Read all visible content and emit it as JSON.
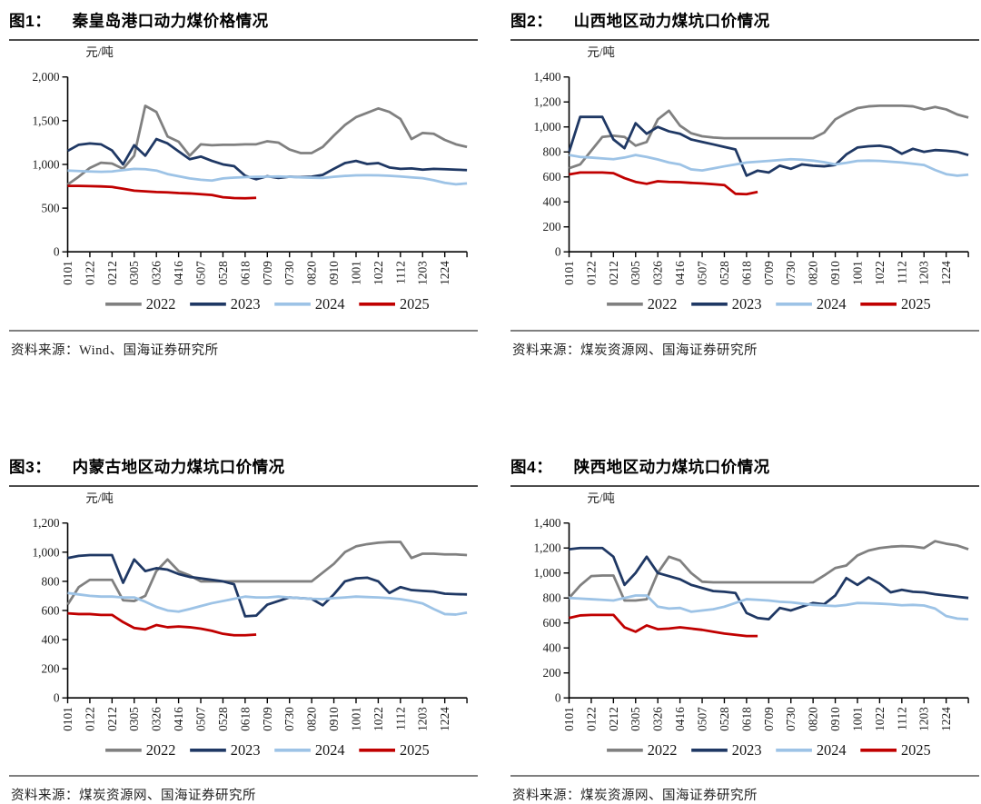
{
  "page": {
    "background": "#ffffff"
  },
  "figures": [
    {
      "number": "图1：",
      "title": "秦皇岛港口动力煤价格情况",
      "source": "资料来源：Wind、国海证券研究所"
    },
    {
      "number": "图2：",
      "title": "山西地区动力煤坑口价情况",
      "source": "资料来源：煤炭资源网、国海证券研究所"
    },
    {
      "number": "图3：",
      "title": "内蒙古地区动力煤坑口价情况",
      "source": "资料来源：煤炭资源网、国海证券研究所"
    },
    {
      "number": "图4：",
      "title": "陕西地区动力煤坑口价情况",
      "source": "资料来源：煤炭资源网、国海证券研究所"
    }
  ],
  "colors": {
    "y2022": "#808080",
    "y2023": "#1F3864",
    "y2024": "#9DC3E6",
    "y2025": "#C00000",
    "axis": "#000000",
    "title_rule": "#4d4d4d",
    "source_rule": "#7f7f7f"
  },
  "chart_data": [
    {
      "type": "line",
      "title": "秦皇岛港口动力煤价格情况",
      "unit_label": "元/吨",
      "ylim": [
        0,
        2000
      ],
      "ytick_step": 500,
      "grid": false,
      "legend_position": "bottom",
      "x_ticklabels": [
        "0101",
        "0122",
        "0212",
        "0305",
        "0326",
        "0416",
        "0507",
        "0528",
        "0618",
        "0709",
        "0730",
        "0820",
        "0910",
        "1001",
        "1022",
        "1112",
        "1203",
        "1224"
      ],
      "points_per_year": 37,
      "series": [
        {
          "name": "2022",
          "color": "#808080",
          "values": [
            770,
            860,
            960,
            1020,
            1010,
            950,
            1100,
            1670,
            1600,
            1320,
            1260,
            1100,
            1230,
            1220,
            1225,
            1225,
            1230,
            1230,
            1265,
            1250,
            1170,
            1130,
            1130,
            1200,
            1330,
            1450,
            1540,
            1590,
            1640,
            1600,
            1520,
            1290,
            1360,
            1350,
            1280,
            1230,
            1200
          ]
        },
        {
          "name": "2023",
          "color": "#1F3864",
          "values": [
            1155,
            1225,
            1240,
            1230,
            1160,
            1000,
            1220,
            1100,
            1290,
            1240,
            1150,
            1060,
            1090,
            1040,
            1000,
            980,
            870,
            830,
            865,
            845,
            860,
            855,
            860,
            880,
            950,
            1015,
            1040,
            1005,
            1015,
            965,
            950,
            955,
            940,
            950,
            945,
            940,
            935
          ]
        },
        {
          "name": "2024",
          "color": "#9DC3E6",
          "values": [
            930,
            925,
            920,
            915,
            920,
            935,
            950,
            945,
            930,
            890,
            865,
            840,
            825,
            815,
            840,
            850,
            855,
            858,
            860,
            862,
            858,
            852,
            848,
            845,
            858,
            868,
            875,
            876,
            875,
            870,
            862,
            852,
            842,
            820,
            790,
            772,
            782
          ]
        },
        {
          "name": "2025",
          "color": "#C00000",
          "values": [
            755,
            755,
            752,
            748,
            742,
            722,
            700,
            692,
            685,
            680,
            672,
            668,
            660,
            650,
            625,
            615,
            612,
            618
          ]
        }
      ]
    },
    {
      "type": "line",
      "title": "山西地区动力煤坑口价情况",
      "unit_label": "元/吨",
      "ylim": [
        0,
        1400
      ],
      "ytick_step": 200,
      "grid": false,
      "legend_position": "bottom",
      "x_ticklabels": [
        "0101",
        "0122",
        "0212",
        "0305",
        "0326",
        "0416",
        "0507",
        "0528",
        "0618",
        "0709",
        "0730",
        "0820",
        "0910",
        "1001",
        "1022",
        "1112",
        "1203",
        "1224"
      ],
      "points_per_year": 37,
      "series": [
        {
          "name": "2022",
          "color": "#808080",
          "values": [
            670,
            700,
            810,
            920,
            930,
            920,
            850,
            880,
            1060,
            1130,
            1010,
            950,
            925,
            915,
            910,
            910,
            910,
            910,
            910,
            910,
            910,
            910,
            910,
            955,
            1060,
            1110,
            1150,
            1165,
            1170,
            1170,
            1170,
            1165,
            1140,
            1160,
            1140,
            1100,
            1075
          ]
        },
        {
          "name": "2023",
          "color": "#1F3864",
          "values": [
            800,
            1080,
            1080,
            1080,
            900,
            830,
            1030,
            945,
            1000,
            965,
            945,
            900,
            880,
            860,
            840,
            820,
            610,
            650,
            635,
            690,
            665,
            700,
            690,
            685,
            695,
            780,
            835,
            845,
            850,
            835,
            785,
            825,
            800,
            815,
            810,
            800,
            775
          ]
        },
        {
          "name": "2024",
          "color": "#9DC3E6",
          "values": [
            775,
            760,
            755,
            748,
            742,
            755,
            775,
            760,
            740,
            715,
            700,
            660,
            652,
            668,
            685,
            700,
            715,
            722,
            728,
            735,
            742,
            738,
            730,
            718,
            700,
            712,
            728,
            730,
            728,
            722,
            715,
            705,
            695,
            655,
            622,
            610,
            618
          ]
        },
        {
          "name": "2025",
          "color": "#C00000",
          "values": [
            620,
            635,
            635,
            635,
            630,
            590,
            560,
            545,
            565,
            560,
            558,
            552,
            548,
            542,
            535,
            465,
            462,
            480
          ]
        }
      ]
    },
    {
      "type": "line",
      "title": "内蒙古地区动力煤坑口价情况",
      "unit_label": "元/吨",
      "ylim": [
        0,
        1200
      ],
      "ytick_step": 200,
      "grid": false,
      "legend_position": "bottom",
      "x_ticklabels": [
        "0101",
        "0122",
        "0212",
        "0305",
        "0326",
        "0416",
        "0507",
        "0528",
        "0618",
        "0709",
        "0730",
        "0820",
        "0910",
        "1001",
        "1022",
        "1112",
        "1203",
        "1224"
      ],
      "points_per_year": 37,
      "series": [
        {
          "name": "2022",
          "color": "#808080",
          "values": [
            640,
            760,
            810,
            810,
            810,
            670,
            665,
            700,
            870,
            950,
            870,
            840,
            800,
            800,
            800,
            800,
            800,
            800,
            800,
            800,
            800,
            800,
            800,
            860,
            920,
            1000,
            1040,
            1055,
            1065,
            1070,
            1070,
            960,
            990,
            990,
            985,
            985,
            980
          ]
        },
        {
          "name": "2023",
          "color": "#1F3864",
          "values": [
            960,
            975,
            980,
            980,
            980,
            790,
            950,
            870,
            890,
            880,
            850,
            830,
            820,
            810,
            800,
            780,
            560,
            565,
            640,
            665,
            690,
            685,
            680,
            635,
            710,
            800,
            820,
            825,
            800,
            720,
            760,
            740,
            735,
            730,
            715,
            712,
            710
          ]
        },
        {
          "name": "2024",
          "color": "#9DC3E6",
          "values": [
            720,
            710,
            700,
            695,
            695,
            690,
            690,
            660,
            625,
            600,
            592,
            610,
            630,
            650,
            665,
            680,
            695,
            690,
            690,
            695,
            690,
            685,
            680,
            678,
            685,
            690,
            695,
            692,
            690,
            685,
            678,
            665,
            648,
            610,
            575,
            572,
            585
          ]
        },
        {
          "name": "2025",
          "color": "#C00000",
          "values": [
            580,
            575,
            575,
            570,
            570,
            520,
            480,
            470,
            500,
            485,
            490,
            485,
            475,
            460,
            440,
            430,
            430,
            435
          ]
        }
      ]
    },
    {
      "type": "line",
      "title": "陕西地区动力煤坑口价情况",
      "unit_label": "元/吨",
      "ylim": [
        0,
        1400
      ],
      "ytick_step": 200,
      "grid": false,
      "legend_position": "bottom",
      "x_ticklabels": [
        "0101",
        "0122",
        "0212",
        "0305",
        "0326",
        "0416",
        "0507",
        "0528",
        "0618",
        "0709",
        "0730",
        "0820",
        "0910",
        "1001",
        "1022",
        "1112",
        "1203",
        "1224"
      ],
      "points_per_year": 37,
      "series": [
        {
          "name": "2022",
          "color": "#808080",
          "values": [
            800,
            900,
            975,
            980,
            980,
            780,
            780,
            790,
            1000,
            1130,
            1100,
            1000,
            930,
            925,
            925,
            925,
            925,
            925,
            925,
            925,
            925,
            925,
            925,
            980,
            1040,
            1060,
            1140,
            1180,
            1200,
            1210,
            1215,
            1212,
            1200,
            1255,
            1235,
            1220,
            1190
          ]
        },
        {
          "name": "2023",
          "color": "#1F3864",
          "values": [
            1190,
            1200,
            1200,
            1200,
            1130,
            905,
            1000,
            1130,
            1000,
            975,
            950,
            905,
            880,
            855,
            850,
            840,
            680,
            640,
            630,
            720,
            700,
            730,
            760,
            750,
            820,
            960,
            905,
            965,
            915,
            845,
            865,
            850,
            845,
            830,
            820,
            810,
            800
          ]
        },
        {
          "name": "2024",
          "color": "#9DC3E6",
          "values": [
            800,
            795,
            790,
            785,
            780,
            800,
            820,
            820,
            730,
            715,
            720,
            690,
            700,
            710,
            730,
            760,
            790,
            785,
            780,
            770,
            765,
            755,
            745,
            740,
            735,
            745,
            760,
            758,
            755,
            750,
            742,
            745,
            740,
            715,
            655,
            635,
            630
          ]
        },
        {
          "name": "2025",
          "color": "#C00000",
          "values": [
            640,
            660,
            665,
            665,
            665,
            565,
            530,
            580,
            550,
            555,
            565,
            555,
            545,
            530,
            515,
            505,
            495,
            495
          ]
        }
      ]
    }
  ]
}
